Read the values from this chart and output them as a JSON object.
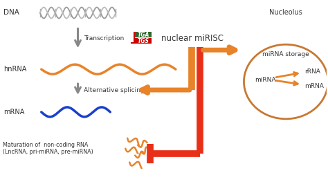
{
  "bg_color": "#ffffff",
  "gray_arrow_color": "#888888",
  "orange_color": "#E8832A",
  "red_color": "#E83018",
  "dark_green": "#2d6a2d",
  "red_text": "#cc0000",
  "dna_color": "#888888",
  "mrna_color": "#1a3fcc",
  "nucleolus_border": "#c87830",
  "text_color": "#333333",
  "labels": {
    "dna": "DNA",
    "transcription": "Transcription",
    "tga": "TGA",
    "tgs": "TGS",
    "nuclear_mirisc": "nuclear miRISC",
    "hnrna": "hnRNA",
    "alt_splicing": "Alternative splicing",
    "mrna": "mRNA",
    "ncrna_label": "Maturation of  non-coding RNA\n(LncRNA, pri-miRNA, pre-miRNA)",
    "nucleolus": "Nucleolus",
    "mirna_storage": "miRNA storage",
    "mirna": "miRNA",
    "rrna": "rRNA",
    "mrna2": "mRNA"
  }
}
